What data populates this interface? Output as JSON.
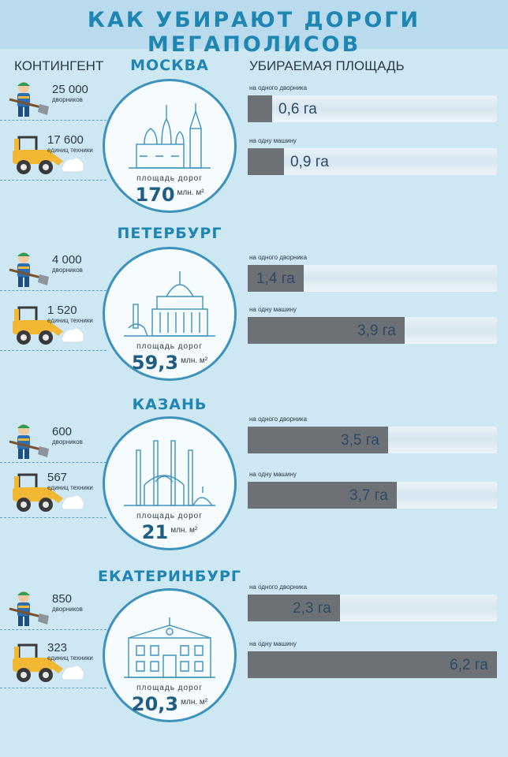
{
  "title": "КАК УБИРАЮТ ДОРОГИ МЕГАПОЛИСОВ",
  "headers": {
    "left": "КОНТИНГЕНТ",
    "right": "УБИРАЕМАЯ ПЛОЩАДЬ"
  },
  "area_caption": "площадь дорог",
  "area_unit": "млн. м²",
  "bar_labels": {
    "worker": "на одного дворника",
    "machine": "на одну машину"
  },
  "cities": [
    {
      "name": "МОСКВА",
      "workers": "25 000",
      "workers_label": "дворников",
      "machines": "17 600",
      "machines_label": "единиц техники",
      "area": "170",
      "per_worker": "0,6 га",
      "per_machine": "0,9 га"
    },
    {
      "name": "ПЕТЕРБУРГ",
      "workers": "4 000",
      "workers_label": "дворников",
      "machines": "1 520",
      "machines_label": "единиц техники",
      "area": "59,3",
      "per_worker": "1,4 га",
      "per_machine": "3,9 га"
    },
    {
      "name": "КАЗАНЬ",
      "workers": "600",
      "workers_label": "дворников",
      "machines": "567",
      "machines_label": "единиц техники",
      "area": "21",
      "per_worker": "3,5 га",
      "per_machine": "3,7 га"
    },
    {
      "name": "ЕКАТЕРИНБУРГ",
      "workers": "850",
      "workers_label": "дворников",
      "machines": "323",
      "machines_label": "единиц техники",
      "area": "20,3",
      "per_worker": "2,3 га",
      "per_machine": "6,2 га"
    }
  ],
  "chart_data": {
    "type": "bar",
    "categories": [
      "МОСКВА",
      "ПЕТЕРБУРГ",
      "КАЗАНЬ",
      "ЕКАТЕРИНБУРГ"
    ],
    "series": [
      {
        "name": "на одного дворника",
        "values": [
          0.6,
          1.4,
          3.5,
          2.3
        ]
      },
      {
        "name": "на одну машину",
        "values": [
          0.9,
          3.9,
          3.7,
          6.2
        ]
      }
    ],
    "unit": "га",
    "max": 6.2
  },
  "colors": {
    "accent": "#1f86b4",
    "bar": "#6d7074",
    "background": "#cde7f3",
    "circle_border": "#3d92bd"
  },
  "icons": {
    "worker": "worker-with-shovel-icon",
    "machine": "snow-loader-icon"
  }
}
